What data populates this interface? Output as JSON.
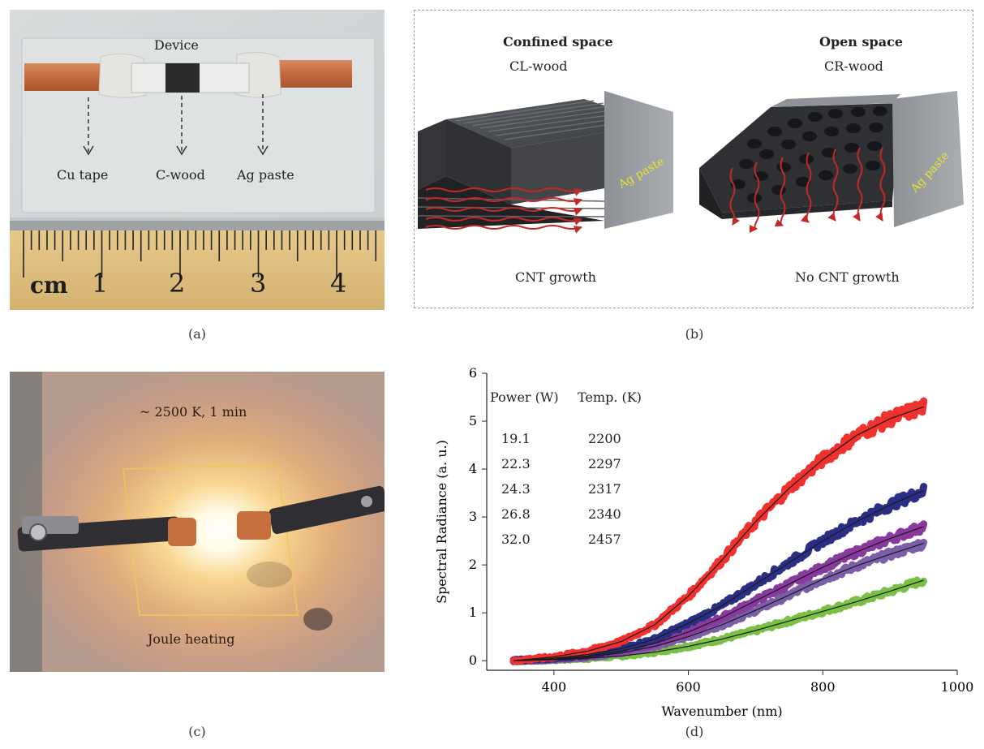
{
  "panel_a": {
    "caption": "(a)",
    "device_label": "Device",
    "cu_label": "Cu tape",
    "cwood_label": "C-wood",
    "ag_label": "Ag paste",
    "ruler_unit": "cm",
    "ruler_numbers": [
      "1",
      "2",
      "3",
      "4"
    ]
  },
  "panel_b": {
    "caption": "(b)",
    "left_title": "Confined space",
    "left_subtitle": "CL-wood",
    "left_result": "CNT growth",
    "left_paste": "Ag paste",
    "right_title": "Open space",
    "right_subtitle": "CR-wood",
    "right_result": "No CNT growth",
    "right_paste": "Ag paste"
  },
  "panel_c": {
    "caption": "(c)",
    "top_text": "~ 2500 K, 1 min",
    "bottom_text": "Joule heating"
  },
  "panel_d": {
    "caption": "(d)",
    "table_header_power": "Power (W)",
    "table_header_temp": "Temp. (K)",
    "table_rows": [
      {
        "power": "19.1",
        "temp": "2200"
      },
      {
        "power": "22.3",
        "temp": "2297"
      },
      {
        "power": "24.3",
        "temp": "2317"
      },
      {
        "power": "26.8",
        "temp": "2340"
      },
      {
        "power": "32.0",
        "temp": "2457"
      }
    ]
  },
  "chart_data": {
    "type": "line",
    "title": "",
    "xlabel": "Wavenumber (nm)",
    "ylabel": "Spectral Radiance (a. u.)",
    "xlim": [
      300,
      1000
    ],
    "ylim": [
      -0.2,
      6
    ],
    "xticks": [
      400,
      600,
      800,
      1000
    ],
    "yticks": [
      0,
      1,
      2,
      3,
      4,
      5,
      6
    ],
    "grid": false,
    "x": [
      340,
      400,
      450,
      500,
      550,
      600,
      650,
      700,
      750,
      800,
      850,
      900,
      950
    ],
    "series": [
      {
        "color": "#7ac143",
        "values": [
          0.0,
          0.02,
          0.05,
          0.1,
          0.18,
          0.3,
          0.45,
          0.63,
          0.83,
          1.03,
          1.23,
          1.45,
          1.68
        ]
      },
      {
        "color": "#7b5ea7",
        "values": [
          0.0,
          0.03,
          0.08,
          0.16,
          0.3,
          0.5,
          0.75,
          1.05,
          1.37,
          1.7,
          1.98,
          2.22,
          2.45
        ]
      },
      {
        "color": "#8a3a9e",
        "values": [
          0.0,
          0.04,
          0.1,
          0.2,
          0.36,
          0.6,
          0.9,
          1.25,
          1.6,
          1.95,
          2.27,
          2.55,
          2.8
        ]
      },
      {
        "color": "#2a2f85",
        "values": [
          0.0,
          0.05,
          0.13,
          0.25,
          0.45,
          0.78,
          1.15,
          1.6,
          2.05,
          2.5,
          2.9,
          3.25,
          3.55
        ]
      },
      {
        "color": "#f0312e",
        "values": [
          0.0,
          0.08,
          0.2,
          0.4,
          0.75,
          1.35,
          2.1,
          2.9,
          3.6,
          4.2,
          4.7,
          5.05,
          5.3
        ]
      }
    ]
  }
}
